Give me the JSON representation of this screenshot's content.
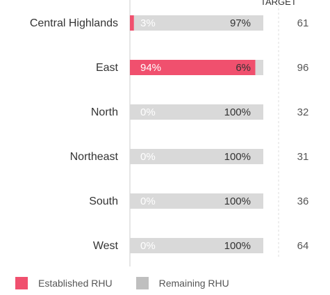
{
  "chart_data": {
    "type": "bar",
    "stacked": true,
    "orientation": "horizontal",
    "categories": [
      "Central Highlands",
      "East",
      "North",
      "Northeast",
      "South",
      "West"
    ],
    "series": [
      {
        "name": "Established RHU",
        "values": [
          3,
          94,
          0,
          0,
          0,
          0
        ],
        "labels": [
          "3%",
          "94%",
          "0%",
          "0%",
          "0%",
          "0%"
        ],
        "color": "#f0506e"
      },
      {
        "name": "Remaining RHU",
        "values": [
          97,
          6,
          100,
          100,
          100,
          100
        ],
        "labels": [
          "97%",
          "6%",
          "100%",
          "100%",
          "100%",
          "100%"
        ],
        "color": "#d9d9d9"
      }
    ],
    "target_header": "TARGET",
    "targets": [
      "61",
      "96",
      "32",
      "31",
      "36",
      "64"
    ],
    "xlim": [
      0,
      100
    ],
    "legend_position": "bottom-left",
    "legend_swatch_remaining": "#bfbfbf"
  }
}
